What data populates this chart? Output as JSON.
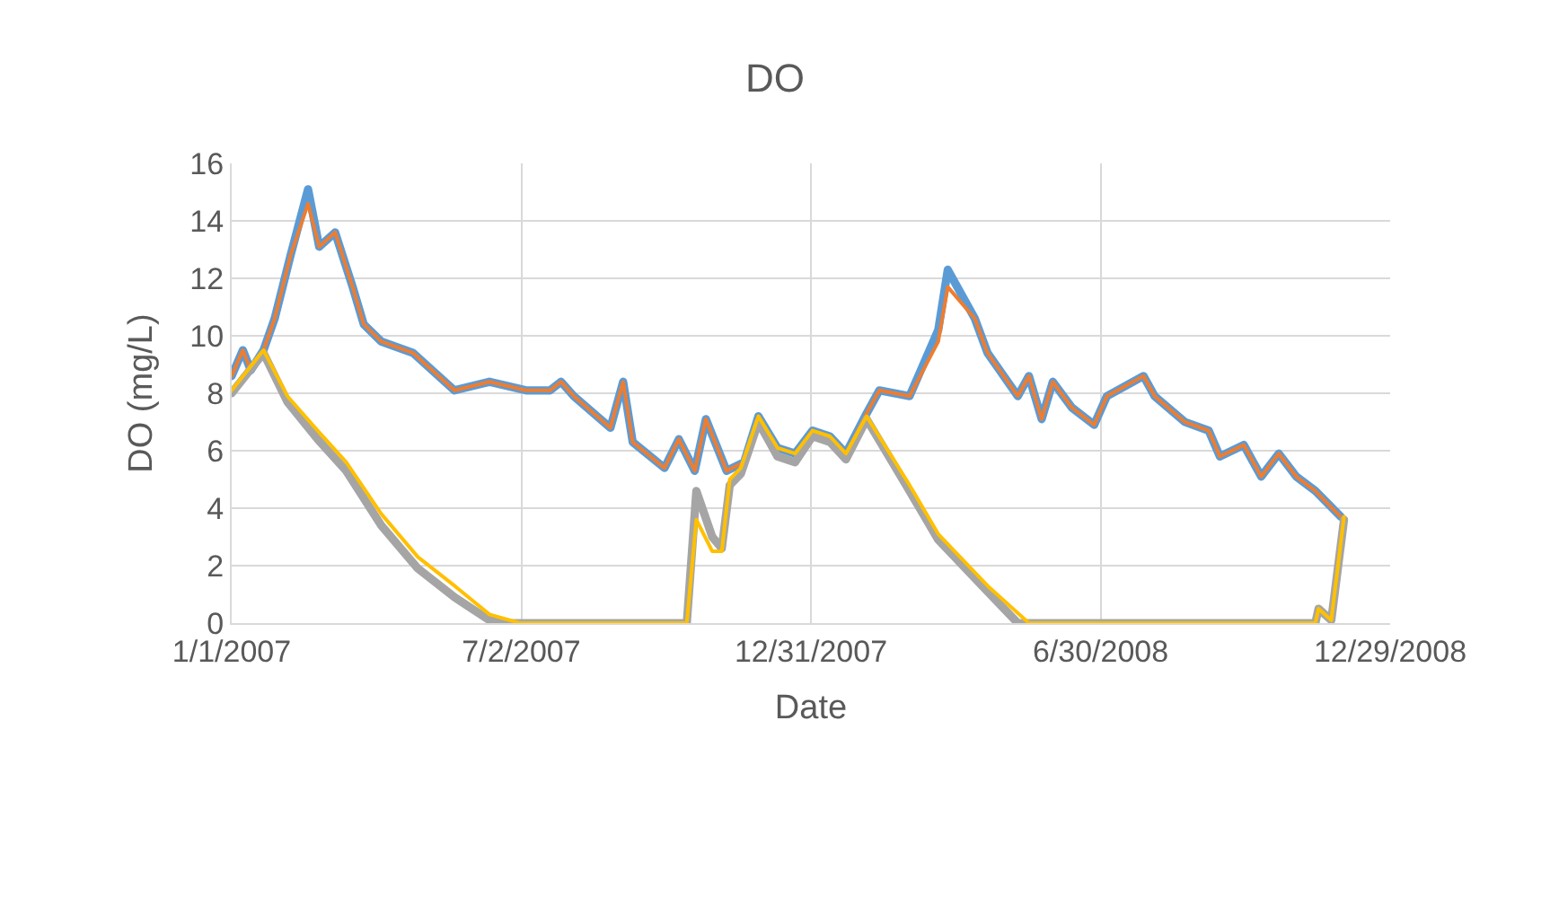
{
  "chart_data": {
    "type": "line",
    "title": "DO",
    "xlabel": "Date",
    "ylabel": "DO (mg/L)",
    "xlim": [
      "2007-01-01",
      "2008-12-29"
    ],
    "xticks": [
      {
        "value": "2007-01-01",
        "label": "1/1/2007"
      },
      {
        "value": "2007-07-02",
        "label": "7/2/2007"
      },
      {
        "value": "2007-12-31",
        "label": "12/31/2007"
      },
      {
        "value": "2008-06-30",
        "label": "6/30/2008"
      },
      {
        "value": "2008-12-29",
        "label": "12/29/2008"
      }
    ],
    "ylim": [
      0,
      16
    ],
    "yticks": [
      0,
      2,
      4,
      6,
      8,
      10,
      12,
      14,
      16
    ],
    "grid": true,
    "line_style": "solid",
    "marker": "none",
    "series": [
      {
        "color": "#5b9bd5",
        "x": [
          "2007-01-01",
          "2007-01-08",
          "2007-01-13",
          "2007-01-21",
          "2007-01-28",
          "2007-02-07",
          "2007-02-18",
          "2007-02-25",
          "2007-03-07",
          "2007-03-18",
          "2007-03-25",
          "2007-04-05",
          "2007-04-25",
          "2007-05-21",
          "2007-06-12",
          "2007-07-05",
          "2007-07-20",
          "2007-07-27",
          "2007-08-04",
          "2007-08-27",
          "2007-09-04",
          "2007-09-10",
          "2007-09-30",
          "2007-10-09",
          "2007-10-19",
          "2007-10-26",
          "2007-11-08",
          "2007-11-19",
          "2007-11-28",
          "2007-12-10",
          "2007-12-21",
          "2008-01-01",
          "2008-01-12",
          "2008-01-22",
          "2008-02-04",
          "2008-02-12",
          "2008-03-02",
          "2008-03-20",
          "2008-03-26",
          "2008-04-12",
          "2008-04-20",
          "2008-05-09",
          "2008-05-16",
          "2008-05-24",
          "2008-05-31",
          "2008-06-12",
          "2008-06-26",
          "2008-07-04",
          "2008-07-27",
          "2008-08-03",
          "2008-08-22",
          "2008-09-06",
          "2008-09-13",
          "2008-09-28",
          "2008-10-09",
          "2008-10-20",
          "2008-10-31",
          "2008-11-12",
          "2008-11-28"
        ],
        "values": [
          8.6,
          9.5,
          8.8,
          9.5,
          10.6,
          12.8,
          15.1,
          13.1,
          13.6,
          11.7,
          10.4,
          9.8,
          9.4,
          8.1,
          8.4,
          8.1,
          8.1,
          8.4,
          7.9,
          6.8,
          8.4,
          6.3,
          5.4,
          6.4,
          5.3,
          7.1,
          5.3,
          5.6,
          7.2,
          6.1,
          5.9,
          6.7,
          6.5,
          5.9,
          7.3,
          8.1,
          7.9,
          10.2,
          12.3,
          10.6,
          9.4,
          7.9,
          8.6,
          7.1,
          8.4,
          7.5,
          6.9,
          7.9,
          8.6,
          7.9,
          7.0,
          6.7,
          5.8,
          6.2,
          5.1,
          5.9,
          5.1,
          4.6,
          3.7
        ]
      },
      {
        "color": "#ed7d31",
        "x": [
          "2007-01-01",
          "2007-01-08",
          "2007-01-13",
          "2007-01-21",
          "2007-01-28",
          "2007-02-07",
          "2007-02-18",
          "2007-02-25",
          "2007-03-07",
          "2007-03-18",
          "2007-03-25",
          "2007-04-05",
          "2007-04-25",
          "2007-05-21",
          "2007-06-12",
          "2007-07-05",
          "2007-07-20",
          "2007-07-27",
          "2007-08-04",
          "2007-08-27",
          "2007-09-04",
          "2007-09-10",
          "2007-09-30",
          "2007-10-09",
          "2007-10-19",
          "2007-10-26",
          "2007-11-08",
          "2007-11-19",
          "2007-11-28",
          "2007-12-10",
          "2007-12-21",
          "2008-01-01",
          "2008-01-12",
          "2008-01-22",
          "2008-02-04",
          "2008-02-12",
          "2008-03-02",
          "2008-03-20",
          "2008-03-26",
          "2008-04-12",
          "2008-04-20",
          "2008-05-09",
          "2008-05-16",
          "2008-05-24",
          "2008-05-31",
          "2008-06-12",
          "2008-06-26",
          "2008-07-04",
          "2008-07-27",
          "2008-08-03",
          "2008-08-22",
          "2008-09-06",
          "2008-09-13",
          "2008-09-28",
          "2008-10-09",
          "2008-10-20",
          "2008-10-31",
          "2008-11-12",
          "2008-11-28"
        ],
        "values": [
          8.6,
          9.5,
          8.8,
          9.5,
          10.6,
          12.8,
          14.6,
          13.1,
          13.6,
          11.7,
          10.4,
          9.8,
          9.4,
          8.1,
          8.4,
          8.1,
          8.1,
          8.4,
          7.9,
          6.8,
          8.4,
          6.3,
          5.4,
          6.4,
          5.3,
          7.1,
          5.3,
          5.6,
          7.2,
          6.1,
          5.9,
          6.7,
          6.5,
          5.9,
          7.3,
          8.1,
          7.9,
          9.8,
          11.7,
          10.6,
          9.4,
          7.9,
          8.6,
          7.1,
          8.4,
          7.5,
          6.9,
          7.9,
          8.6,
          7.9,
          7.0,
          6.7,
          5.8,
          6.2,
          5.1,
          5.9,
          5.1,
          4.6,
          3.7
        ]
      },
      {
        "color": "#a5a5a5",
        "x": [
          "2007-01-01",
          "2007-01-21",
          "2007-02-05",
          "2007-02-24",
          "2007-03-14",
          "2007-04-05",
          "2007-04-28",
          "2007-05-21",
          "2007-06-12",
          "2007-06-24",
          "2007-10-14",
          "2007-10-20",
          "2007-10-30",
          "2007-11-05",
          "2007-11-10",
          "2007-11-17",
          "2007-11-28",
          "2007-12-10",
          "2007-12-21",
          "2008-01-01",
          "2008-01-12",
          "2008-01-22",
          "2008-02-04",
          "2008-03-02",
          "2008-03-20",
          "2008-04-20",
          "2008-05-09",
          "2008-11-12",
          "2008-11-14",
          "2008-11-22",
          "2008-11-30"
        ],
        "values": [
          8.0,
          9.4,
          7.7,
          6.4,
          5.3,
          3.4,
          1.9,
          0.9,
          0.1,
          0,
          0,
          4.6,
          3.0,
          2.6,
          4.8,
          5.2,
          7.0,
          5.8,
          5.6,
          6.5,
          6.3,
          5.7,
          7.1,
          4.6,
          2.9,
          1.1,
          0,
          0,
          0.5,
          0.1,
          3.6
        ]
      },
      {
        "color": "#ffc000",
        "x": [
          "2007-01-01",
          "2007-01-21",
          "2007-02-05",
          "2007-02-24",
          "2007-03-14",
          "2007-04-05",
          "2007-04-28",
          "2007-05-21",
          "2007-06-12",
          "2007-07-01",
          "2007-10-14",
          "2007-10-20",
          "2007-10-30",
          "2007-11-05",
          "2007-11-10",
          "2007-11-17",
          "2007-11-28",
          "2007-12-10",
          "2007-12-21",
          "2008-01-01",
          "2008-01-12",
          "2008-01-22",
          "2008-02-04",
          "2008-03-02",
          "2008-03-20",
          "2008-04-20",
          "2008-05-16",
          "2008-11-12",
          "2008-11-14",
          "2008-11-22",
          "2008-11-30"
        ],
        "values": [
          8.1,
          9.5,
          7.9,
          6.7,
          5.6,
          3.8,
          2.3,
          1.3,
          0.3,
          0,
          0,
          3.6,
          2.5,
          2.5,
          5.0,
          5.4,
          7.2,
          6.1,
          5.9,
          6.7,
          6.5,
          5.9,
          7.2,
          4.8,
          3.1,
          1.3,
          0,
          0,
          0.5,
          0.1,
          3.7
        ]
      }
    ]
  }
}
